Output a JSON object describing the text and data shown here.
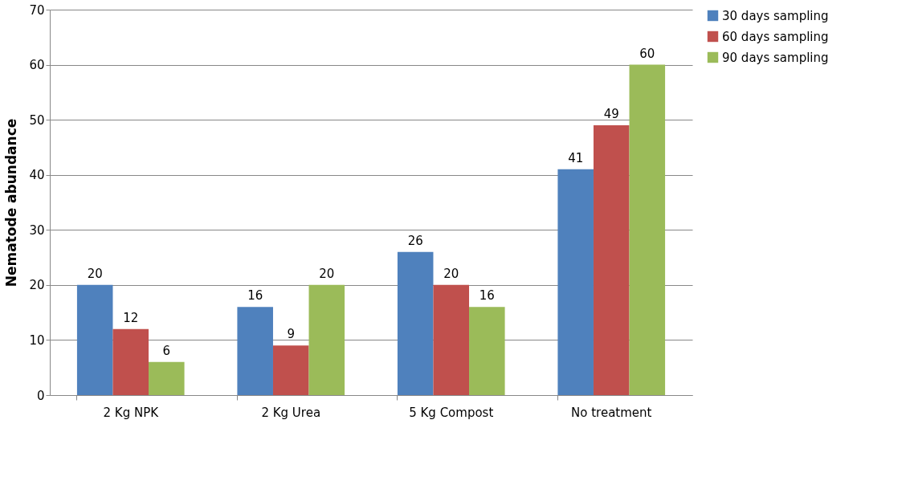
{
  "chart_data": {
    "type": "bar",
    "ylabel": "Nematode abundance",
    "categories": [
      "2 Kg NPK",
      "2 Kg Urea",
      "5 Kg Compost",
      "No treatment"
    ],
    "series": [
      {
        "name": "30 days sampling",
        "color": "#4f81bd",
        "values": [
          20,
          16,
          26,
          41
        ]
      },
      {
        "name": "60 days sampling",
        "color": "#c0504d",
        "values": [
          12,
          9,
          20,
          49
        ]
      },
      {
        "name": "90 days sampling",
        "color": "#9bbb59",
        "values": [
          6,
          20,
          16,
          60
        ]
      }
    ],
    "ylim": [
      0,
      70
    ],
    "yticks": [
      0,
      10,
      20,
      30,
      40,
      50,
      60,
      70
    ],
    "grid": "y",
    "legend": "right",
    "data_labels": true
  }
}
